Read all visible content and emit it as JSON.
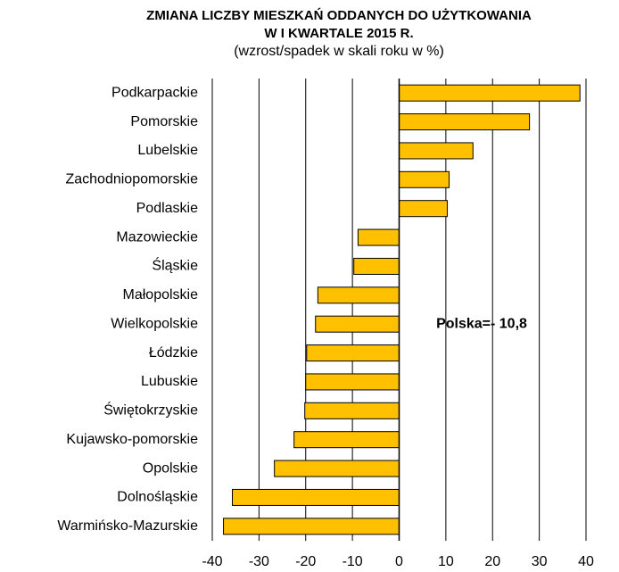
{
  "chart_data": {
    "type": "bar",
    "orientation": "horizontal",
    "title": [
      "ZMIANA LICZBY MIESZKAŃ  ODDANYCH  DO UŻYTKOWANIA",
      "W I KWARTALE  2015 R."
    ],
    "subtitle": "(wzrost/spadek w skali roku w %)",
    "annotation": "Polska=- 10,8",
    "categories": [
      "Podkarpackie",
      "Pomorskie",
      "Lubelskie",
      "Zachodniopomorskie",
      "Podlaskie",
      "Mazowieckie",
      "Śląskie",
      "Małopolskie",
      "Wielkopolskie",
      "Łódzkie",
      "Lubuskie",
      "Świętokrzyskie",
      "Kujawsko-pomorskie",
      "Opolskie",
      "Dolnośląskie",
      "Warmińsko-Mazurskie"
    ],
    "values": [
      38.7,
      27.9,
      15.8,
      10.7,
      10.3,
      -8.8,
      -9.7,
      -17.4,
      -17.9,
      -19.8,
      -20.0,
      -20.2,
      -22.5,
      -26.7,
      -35.7,
      -37.6
    ],
    "color": "#ffc000",
    "xlim": [
      -40,
      40
    ],
    "xticks": [
      -40,
      -30,
      -20,
      -10,
      0,
      10,
      20,
      30,
      40
    ],
    "grid": true
  }
}
